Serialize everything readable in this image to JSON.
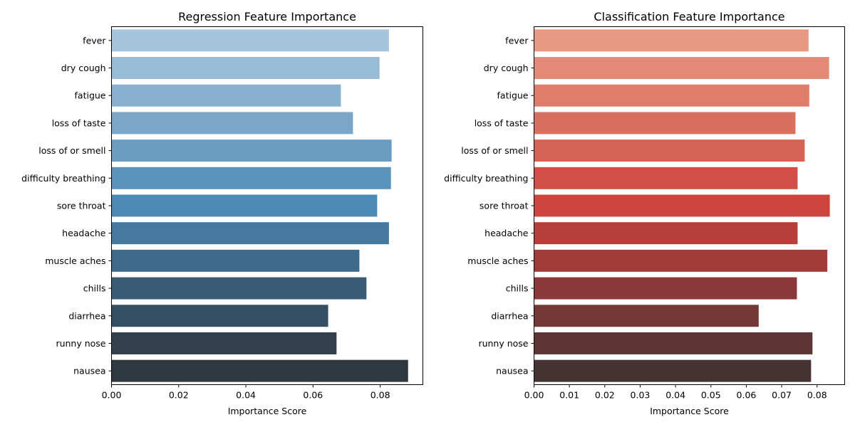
{
  "chart_data": [
    {
      "type": "bar",
      "orientation": "horizontal",
      "title": "Regression Feature Importance",
      "xlabel": "Importance Score",
      "ylabel": "",
      "categories": [
        "fever",
        "dry cough",
        "fatigue",
        "loss of taste",
        "loss of or smell",
        "difficulty breathing",
        "sore throat",
        "headache",
        "muscle aches",
        "chills",
        "diarrhea",
        "runny nose",
        "nausea"
      ],
      "values": [
        0.0826,
        0.0798,
        0.0683,
        0.0719,
        0.0834,
        0.0832,
        0.0791,
        0.0826,
        0.0738,
        0.0759,
        0.0645,
        0.067,
        0.0883
      ],
      "xlim": [
        0,
        0.0927
      ],
      "xticks": [
        0.0,
        0.02,
        0.04,
        0.06,
        0.08
      ],
      "xtick_labels": [
        "0.00",
        "0.02",
        "0.04",
        "0.06",
        "0.08"
      ],
      "colors": [
        "#a6c5dc",
        "#98bbd6",
        "#89b1cf",
        "#7aa7c9",
        "#6b9dc2",
        "#5b93bc",
        "#4d89b5",
        "#4579a0",
        "#3f6a8b",
        "#395b76",
        "#344e64",
        "#323f4d",
        "#30383f"
      ],
      "grid": false
    },
    {
      "type": "bar",
      "orientation": "horizontal",
      "title": "Classification Feature Importance",
      "xlabel": "Importance Score",
      "ylabel": "",
      "categories": [
        "fever",
        "dry cough",
        "fatigue",
        "loss of taste",
        "loss of or smell",
        "difficulty breathing",
        "sore throat",
        "headache",
        "muscle aches",
        "chills",
        "diarrhea",
        "runny nose",
        "nausea"
      ],
      "values": [
        0.0776,
        0.0834,
        0.0778,
        0.0739,
        0.0765,
        0.0745,
        0.0836,
        0.0745,
        0.0829,
        0.0743,
        0.0635,
        0.0787,
        0.0783
      ],
      "xlim": [
        0,
        0.0878
      ],
      "xticks": [
        0.0,
        0.01,
        0.02,
        0.03,
        0.04,
        0.05,
        0.06,
        0.07,
        0.08
      ],
      "xtick_labels": [
        "0.00",
        "0.01",
        "0.02",
        "0.03",
        "0.04",
        "0.05",
        "0.06",
        "0.07",
        "0.08"
      ],
      "colors": [
        "#e99882",
        "#e48a77",
        "#df7d6b",
        "#db6f5f",
        "#d66253",
        "#d14f45",
        "#cc443b",
        "#b63f3a",
        "#a03c39",
        "#8a3938",
        "#743837",
        "#5e3535",
        "#473333"
      ],
      "grid": false
    }
  ]
}
